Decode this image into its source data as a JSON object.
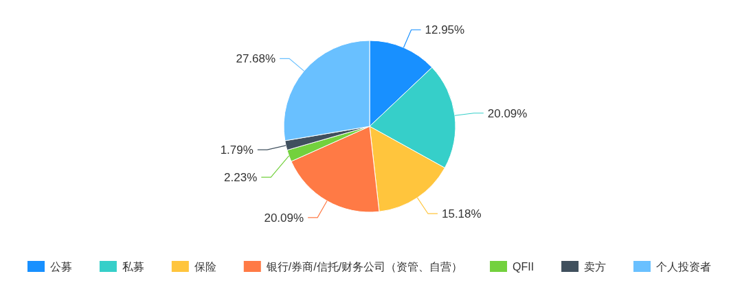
{
  "chart_data": {
    "type": "pie",
    "categories": [
      "公募",
      "私募",
      "保险",
      "银行/券商/信托/财务公司（资管、自营）",
      "QFII",
      "卖方",
      "个人投资者"
    ],
    "values": [
      12.95,
      20.09,
      15.18,
      20.09,
      2.23,
      1.79,
      27.68
    ],
    "value_labels": [
      "12.95%",
      "20.09%",
      "15.18%",
      "20.09%",
      "2.23%",
      "1.79%",
      "27.68%"
    ],
    "colors": [
      "#1890ff",
      "#36cfc9",
      "#ffc53d",
      "#ff7a45",
      "#73d13d",
      "#40505e",
      "#69c0ff"
    ],
    "legend": "bottom"
  }
}
